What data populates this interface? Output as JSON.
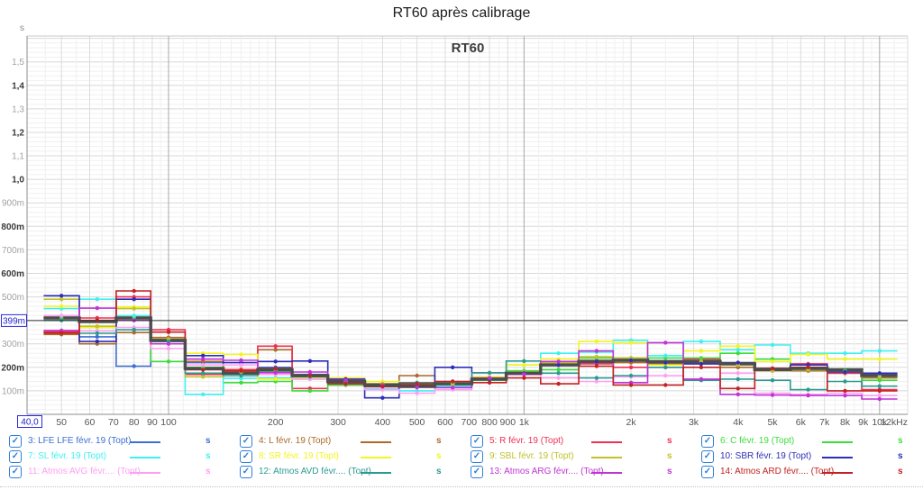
{
  "page_title": "RT60 après calibrage",
  "chart": {
    "inner_title": "RT60",
    "y_unit_label": "s",
    "cursor": {
      "x_label": "40,0",
      "y_label": "399m",
      "x_hz": 40,
      "y_s": 0.399
    },
    "y_ticks": [
      {
        "v": 1.5,
        "label": "1,5",
        "bold": false
      },
      {
        "v": 1.4,
        "label": "1,4",
        "bold": true
      },
      {
        "v": 1.3,
        "label": "1,3",
        "bold": false
      },
      {
        "v": 1.2,
        "label": "1,2",
        "bold": true
      },
      {
        "v": 1.1,
        "label": "1,1",
        "bold": false
      },
      {
        "v": 1.0,
        "label": "1,0",
        "bold": true
      },
      {
        "v": 0.9,
        "label": "900m",
        "bold": false
      },
      {
        "v": 0.8,
        "label": "800m",
        "bold": true
      },
      {
        "v": 0.7,
        "label": "700m",
        "bold": false
      },
      {
        "v": 0.6,
        "label": "600m",
        "bold": true
      },
      {
        "v": 0.5,
        "label": "500m",
        "bold": false
      },
      {
        "v": 0.3,
        "label": "300m",
        "bold": false
      },
      {
        "v": 0.2,
        "label": "200m",
        "bold": true
      },
      {
        "v": 0.1,
        "label": "100m",
        "bold": false
      }
    ],
    "x_ticks": [
      {
        "f": 50,
        "label": "50"
      },
      {
        "f": 60,
        "label": "60"
      },
      {
        "f": 70,
        "label": "70"
      },
      {
        "f": 80,
        "label": "80"
      },
      {
        "f": 90,
        "label": "90"
      },
      {
        "f": 100,
        "label": "100"
      },
      {
        "f": 200,
        "label": "200"
      },
      {
        "f": 300,
        "label": "300"
      },
      {
        "f": 400,
        "label": "400"
      },
      {
        "f": 500,
        "label": "500"
      },
      {
        "f": 600,
        "label": "600"
      },
      {
        "f": 700,
        "label": "700"
      },
      {
        "f": 800,
        "label": "800"
      },
      {
        "f": 900,
        "label": "900"
      },
      {
        "f": 1000,
        "label": "1k"
      },
      {
        "f": 2000,
        "label": "2k"
      },
      {
        "f": 3000,
        "label": "3k"
      },
      {
        "f": 4000,
        "label": "4k"
      },
      {
        "f": 5000,
        "label": "5k"
      },
      {
        "f": 6000,
        "label": "6k"
      },
      {
        "f": 7000,
        "label": "7k"
      },
      {
        "f": 8000,
        "label": "8k"
      },
      {
        "f": 9000,
        "label": "9k"
      },
      {
        "f": 10000,
        "label": "10k"
      },
      {
        "f": 12000,
        "label": "12kHz"
      }
    ]
  },
  "chart_data": {
    "type": "line",
    "subtype": "stepped-third-octave-rt60",
    "title": "RT60",
    "x_scale": "log",
    "x_unit": "Hz",
    "y_unit": "s",
    "x_range": [
      40,
      12000
    ],
    "y_range": [
      0,
      1.61
    ],
    "grid": true,
    "legend_position": "bottom",
    "bands_hz": [
      50,
      63,
      80,
      100,
      125,
      160,
      200,
      250,
      315,
      400,
      500,
      630,
      800,
      1000,
      1250,
      1600,
      2000,
      2500,
      3150,
      4000,
      5000,
      6300,
      8000,
      10000
    ],
    "series": [
      {
        "id": 3,
        "label": "3: LFE LFE févr. 19 (Topt)",
        "color": "#3c6fd2",
        "values": [
          0.35,
          0.33,
          0.205,
          0.31,
          0.22,
          0.19,
          0.2,
          0.17,
          0.14,
          0.13,
          0.125,
          0.135,
          0.15,
          0.18,
          0.215,
          0.22,
          0.23,
          0.22,
          0.22,
          0.21,
          0.19,
          0.195,
          0.185,
          0.17
        ]
      },
      {
        "id": 4,
        "label": "4: L févr. 19 (Topt)",
        "color": "#ab6a2a",
        "values": [
          0.34,
          0.3,
          0.348,
          0.327,
          0.225,
          0.19,
          0.275,
          0.165,
          0.145,
          0.13,
          0.165,
          0.135,
          0.145,
          0.17,
          0.21,
          0.23,
          0.22,
          0.215,
          0.215,
          0.2,
          0.185,
          0.185,
          0.175,
          0.155
        ]
      },
      {
        "id": 5,
        "label": "5: R févr. 19 (Topt)",
        "color": "#ee3052",
        "values": [
          0.352,
          0.41,
          0.5,
          0.36,
          0.17,
          0.19,
          0.29,
          0.11,
          0.125,
          0.12,
          0.115,
          0.13,
          0.145,
          0.17,
          0.21,
          0.215,
          0.2,
          0.2,
          0.235,
          0.215,
          0.195,
          0.215,
          0.175,
          0.105
        ]
      },
      {
        "id": 6,
        "label": "6: C févr. 19 (Topt)",
        "color": "#3cdc3c",
        "values": [
          0.41,
          0.37,
          0.412,
          0.225,
          0.2,
          0.135,
          0.14,
          0.1,
          0.125,
          0.12,
          0.115,
          0.125,
          0.145,
          0.185,
          0.19,
          0.24,
          0.24,
          0.24,
          0.24,
          0.26,
          0.235,
          0.19,
          0.185,
          0.145
        ]
      },
      {
        "id": 7,
        "label": "7: SL févr. 19 (Topt)",
        "color": "#40f0f0",
        "values": [
          0.45,
          0.49,
          0.42,
          0.31,
          0.085,
          0.153,
          0.155,
          0.15,
          0.13,
          0.11,
          0.1,
          0.12,
          0.175,
          0.21,
          0.26,
          0.265,
          0.315,
          0.25,
          0.31,
          0.275,
          0.295,
          0.26,
          0.26,
          0.27
        ]
      },
      {
        "id": 8,
        "label": "8: SR févr. 19 (Topt)",
        "color": "#f4f420",
        "values": [
          0.46,
          0.37,
          0.457,
          0.3,
          0.26,
          0.255,
          0.15,
          0.155,
          0.155,
          0.14,
          0.13,
          0.135,
          0.16,
          0.21,
          0.235,
          0.31,
          0.305,
          0.21,
          0.27,
          0.29,
          0.225,
          0.255,
          0.235,
          0.235
        ]
      },
      {
        "id": 9,
        "label": "9: SBL févr. 19 (Topt)",
        "color": "#c2c22e",
        "values": [
          0.49,
          0.375,
          0.45,
          0.32,
          0.16,
          0.18,
          0.185,
          0.16,
          0.14,
          0.13,
          0.125,
          0.13,
          0.15,
          0.18,
          0.22,
          0.245,
          0.24,
          0.22,
          0.225,
          0.21,
          0.185,
          0.19,
          0.18,
          0.16
        ]
      },
      {
        "id": 10,
        "label": "10: SBR févr. 19 (Topt)",
        "color": "#2e2eb6",
        "values": [
          0.505,
          0.31,
          0.49,
          0.31,
          0.25,
          0.22,
          0.225,
          0.227,
          0.15,
          0.07,
          0.12,
          0.2,
          0.15,
          0.175,
          0.21,
          0.225,
          0.23,
          0.22,
          0.215,
          0.22,
          0.195,
          0.21,
          0.18,
          0.175
        ]
      },
      {
        "id": 11,
        "label": "11: Atmos AVG févr.... (Topt)",
        "color": "#ff9ef2",
        "values": [
          0.42,
          0.355,
          0.37,
          0.28,
          0.21,
          0.21,
          0.17,
          0.15,
          0.135,
          0.105,
          0.09,
          0.105,
          0.175,
          0.17,
          0.155,
          0.14,
          0.16,
          0.165,
          0.15,
          0.175,
          0.09,
          0.085,
          0.09,
          0.08
        ]
      },
      {
        "id": 12,
        "label": "12: Atmos AVD févr.... (Topt)",
        "color": "#2a9b91",
        "values": [
          0.4,
          0.345,
          0.36,
          0.31,
          0.175,
          0.165,
          0.18,
          0.16,
          0.135,
          0.12,
          0.135,
          0.14,
          0.177,
          0.227,
          0.175,
          0.155,
          0.165,
          0.2,
          0.145,
          0.15,
          0.145,
          0.105,
          0.14,
          0.12
        ]
      },
      {
        "id": 13,
        "label": "13: Atmos ARG févr.... (Topt)",
        "color": "#c133d6",
        "values": [
          0.357,
          0.452,
          0.4,
          0.3,
          0.235,
          0.23,
          0.177,
          0.18,
          0.145,
          0.125,
          0.115,
          0.114,
          0.155,
          0.17,
          0.225,
          0.27,
          0.135,
          0.305,
          0.15,
          0.085,
          0.082,
          0.08,
          0.08,
          0.065
        ]
      },
      {
        "id": 14,
        "label": "14: Atmos ARD févr.... (Topt)",
        "color": "#c22222",
        "values": [
          0.346,
          0.4,
          0.525,
          0.35,
          0.19,
          0.185,
          0.195,
          0.165,
          0.13,
          0.118,
          0.13,
          0.14,
          0.135,
          0.155,
          0.13,
          0.205,
          0.125,
          0.125,
          0.2,
          0.11,
          0.195,
          0.2,
          0.1,
          0.1
        ]
      }
    ],
    "average_trace": {
      "name": "average-thick-gray-trace",
      "color": "#4d4d4d",
      "values": [
        0.41,
        0.395,
        0.41,
        0.315,
        0.195,
        0.175,
        0.19,
        0.165,
        0.14,
        0.125,
        0.12,
        0.13,
        0.15,
        0.175,
        0.21,
        0.225,
        0.23,
        0.225,
        0.225,
        0.215,
        0.19,
        0.195,
        0.19,
        0.165
      ]
    }
  },
  "legend": {
    "checkbox_icon": "✓",
    "unit": "s",
    "all_checked": true
  }
}
